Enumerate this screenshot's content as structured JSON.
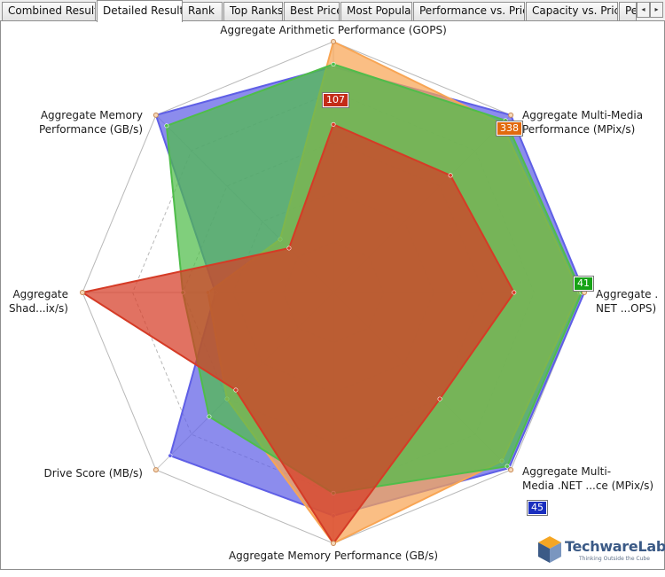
{
  "tabs": [
    {
      "label": "Combined Results",
      "active": false
    },
    {
      "label": "Detailed Results",
      "active": true
    },
    {
      "label": "Rank",
      "active": false
    },
    {
      "label": "Top Ranks",
      "active": false
    },
    {
      "label": "Best Price",
      "active": false
    },
    {
      "label": "Most Popular",
      "active": false
    },
    {
      "label": "Performance vs. Price",
      "active": false
    },
    {
      "label": "Capacity vs. Price",
      "active": false
    },
    {
      "label": "Pe",
      "active": false
    }
  ],
  "tab_scroll": {
    "left_icon": "arrow-left-icon",
    "left_glyph": "◂",
    "right_icon": "arrow-right-icon",
    "right_glyph": "▸"
  },
  "chart_data": {
    "type": "radar",
    "axes": [
      {
        "label_lines": [
          "Aggregate Arithmetic Performance (GOPS)"
        ]
      },
      {
        "label_lines": [
          "Aggregate Multi-Media",
          "Performance (MPix/s)"
        ]
      },
      {
        "label_lines": [
          "Aggregate .",
          "NET ...OPS)"
        ]
      },
      {
        "label_lines": [
          "Aggregate Multi-",
          "Media .NET ...ce (MPix/s)"
        ]
      },
      {
        "label_lines": [
          "Aggregate Memory Performance (GB/s)"
        ]
      },
      {
        "label_lines": [
          "Drive Score (MB/s)"
        ]
      },
      {
        "label_lines": [
          "Aggregate",
          "Shad...ix/s)"
        ]
      },
      {
        "label_lines": [
          "Aggregate Memory",
          "Performance (GB/s)"
        ]
      }
    ],
    "rings": 5,
    "scale": [
      0,
      1
    ],
    "series": [
      {
        "color": "#5f5fe6",
        "values": [
          0.9,
          1.0,
          1.0,
          0.99,
          0.89,
          0.92,
          0.47,
          1.0
        ]
      },
      {
        "color": "#f8a554",
        "values": [
          1.0,
          0.95,
          0.98,
          0.95,
          1.0,
          0.6,
          0.5,
          0.3
        ]
      },
      {
        "color": "#4fbd4a",
        "values": [
          0.91,
          0.97,
          0.99,
          0.98,
          0.8,
          0.7,
          0.6,
          0.94
        ]
      },
      {
        "color": "#d53b26",
        "values": [
          0.67,
          0.66,
          0.72,
          0.6,
          1.0,
          0.55,
          1.0,
          0.25
        ]
      }
    ],
    "value_labels": [
      {
        "text": "107",
        "color": "#c42b18",
        "axis": 0
      },
      {
        "text": "338",
        "color": "#e26a0f",
        "axis": 1
      },
      {
        "text": "41",
        "color": "#16a316",
        "axis": 2
      },
      {
        "text": "45",
        "color": "#1a2fbf",
        "axis": 3
      }
    ]
  },
  "logo": {
    "name": "TechwareLabs",
    "tagline": "Thinking Outside the Cube",
    "icon": "cube-logo-icon"
  }
}
